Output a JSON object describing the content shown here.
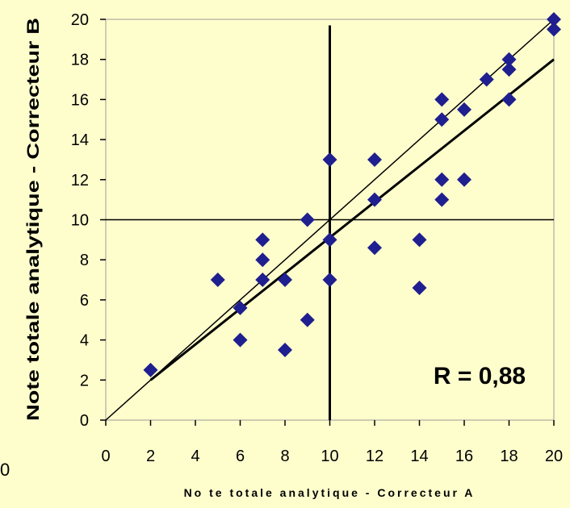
{
  "chart_data": {
    "type": "scatter",
    "xlabel": "No te totale analytique - Correcteur A",
    "ylabel": "Note totale analytique - Correcteur B",
    "xlim": [
      0,
      20
    ],
    "ylim": [
      0,
      20
    ],
    "xticks": [
      "0",
      "2",
      "4",
      "6",
      "8",
      "10",
      "12",
      "14",
      "16",
      "18",
      "20"
    ],
    "yticks": [
      "0",
      "2",
      "4",
      "6",
      "8",
      "10",
      "12",
      "14",
      "16",
      "18",
      "20"
    ],
    "grid": false,
    "annotation": "R = 0,88",
    "stray_label": "0",
    "marker_color": "#1f1f8f",
    "points": [
      {
        "x": 2,
        "y": 2.5
      },
      {
        "x": 5,
        "y": 7
      },
      {
        "x": 6,
        "y": 4
      },
      {
        "x": 6,
        "y": 5.6
      },
      {
        "x": 7,
        "y": 9
      },
      {
        "x": 7,
        "y": 8
      },
      {
        "x": 7,
        "y": 7
      },
      {
        "x": 8,
        "y": 7
      },
      {
        "x": 8,
        "y": 3.5
      },
      {
        "x": 9,
        "y": 10
      },
      {
        "x": 9,
        "y": 5
      },
      {
        "x": 10,
        "y": 13
      },
      {
        "x": 10,
        "y": 9
      },
      {
        "x": 10,
        "y": 7
      },
      {
        "x": 12,
        "y": 13
      },
      {
        "x": 12,
        "y": 11
      },
      {
        "x": 12,
        "y": 8.6
      },
      {
        "x": 14,
        "y": 9
      },
      {
        "x": 14,
        "y": 6.6
      },
      {
        "x": 15,
        "y": 16
      },
      {
        "x": 15,
        "y": 15
      },
      {
        "x": 15,
        "y": 12
      },
      {
        "x": 15,
        "y": 11
      },
      {
        "x": 16,
        "y": 15.5
      },
      {
        "x": 16,
        "y": 12
      },
      {
        "x": 17,
        "y": 17
      },
      {
        "x": 18,
        "y": 18
      },
      {
        "x": 18,
        "y": 17.5
      },
      {
        "x": 18,
        "y": 16
      },
      {
        "x": 20,
        "y": 20
      },
      {
        "x": 20,
        "y": 19.5
      }
    ],
    "lines": [
      {
        "kind": "identity",
        "x": [
          0,
          20
        ],
        "y": [
          0,
          20
        ]
      },
      {
        "kind": "regression",
        "x": [
          2,
          20
        ],
        "y": [
          2,
          18
        ]
      },
      {
        "kind": "mean-vertical",
        "x": [
          10,
          10
        ],
        "y": [
          0,
          19.7
        ]
      },
      {
        "kind": "mean-horizontal",
        "x": [
          0,
          20
        ],
        "y": [
          10,
          10
        ]
      }
    ]
  }
}
